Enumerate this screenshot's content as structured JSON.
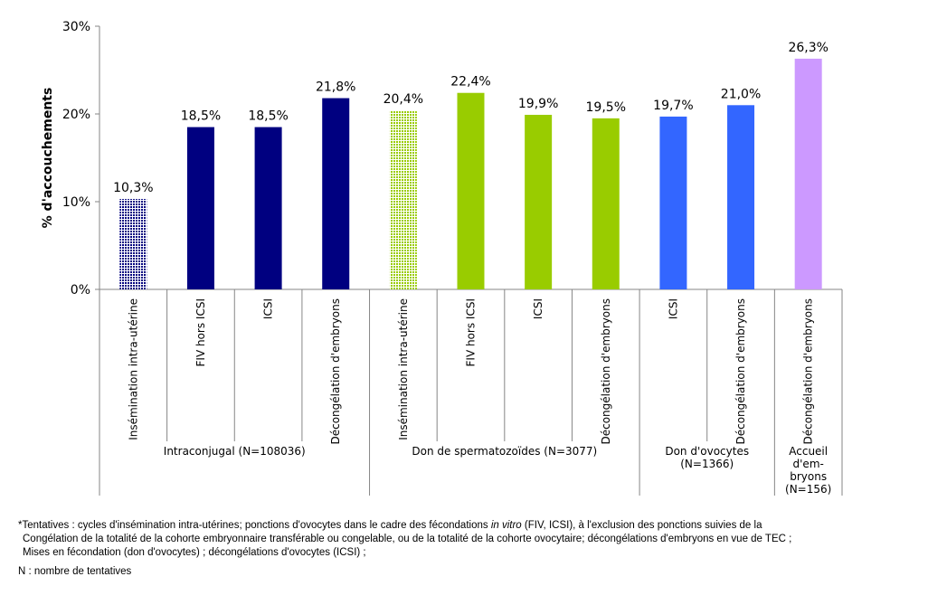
{
  "chart_data": {
    "type": "bar",
    "ylabel": "% d'accouchements",
    "ylim": [
      0,
      30
    ],
    "yticks": [
      0,
      10,
      20,
      30
    ],
    "ytick_labels": [
      "0%",
      "10%",
      "20%",
      "30%"
    ],
    "categories": [
      "Insémination intra-utérine",
      "FIV hors ICSI",
      "ICSI",
      "Décongélation d'embryons",
      "Insémination intra-utérine",
      "FIV hors ICSI",
      "ICSI",
      "Décongélation d'embryons",
      "ICSI",
      "Décongélation d'embryons",
      "Décongélation d'embryons"
    ],
    "values": [
      10.3,
      18.5,
      18.5,
      21.8,
      20.4,
      22.4,
      19.9,
      19.5,
      19.7,
      21.0,
      26.3
    ],
    "value_labels": [
      "10,3%",
      "18,5%",
      "18,5%",
      "21,8%",
      "20,4%",
      "22,4%",
      "19,9%",
      "19,5%",
      "19,7%",
      "21,0%",
      "26,3%"
    ],
    "bar_colors": [
      "#000080",
      "#000080",
      "#000080",
      "#000080",
      "#99cc00",
      "#99cc00",
      "#99cc00",
      "#99cc00",
      "#3366ff",
      "#3366ff",
      "#cc99ff"
    ],
    "bar_patterns": [
      "dots",
      "solid",
      "solid",
      "solid",
      "dots",
      "solid",
      "solid",
      "solid",
      "solid",
      "solid",
      "solid"
    ],
    "groups": [
      {
        "label_lines": [
          "Intraconjugal (N=108036)"
        ],
        "start": 0,
        "count": 4
      },
      {
        "label_lines": [
          "Don de spermatozoïdes (N=3077)"
        ],
        "start": 4,
        "count": 4
      },
      {
        "label_lines": [
          "Don d'ovocytes",
          "(N=1366)"
        ],
        "start": 8,
        "count": 2
      },
      {
        "label_lines": [
          "Accueil",
          "d'em-",
          "bryons",
          "(N=156)"
        ],
        "start": 10,
        "count": 1
      }
    ]
  },
  "footnote": {
    "line1_pre": "*Tentatives : cycles d'insémination intra-utérines; ponctions d'ovocytes dans le cadre des fécondations ",
    "line1_italic": "in vitro",
    "line1_post": " (FIV, ICSI), à l'exclusion des ponctions suivies de la",
    "line2": "Congélation de la totalité de la cohorte embryonnaire transférable ou congelable, ou de la totalité de la cohorte ovocytaire; décongélations d'embryons en vue de TEC ;",
    "line3": "Mises en fécondation (don d'ovocytes) ; décongélations d'ovocytes (ICSI) ;",
    "line4": "N : nombre de tentatives"
  }
}
